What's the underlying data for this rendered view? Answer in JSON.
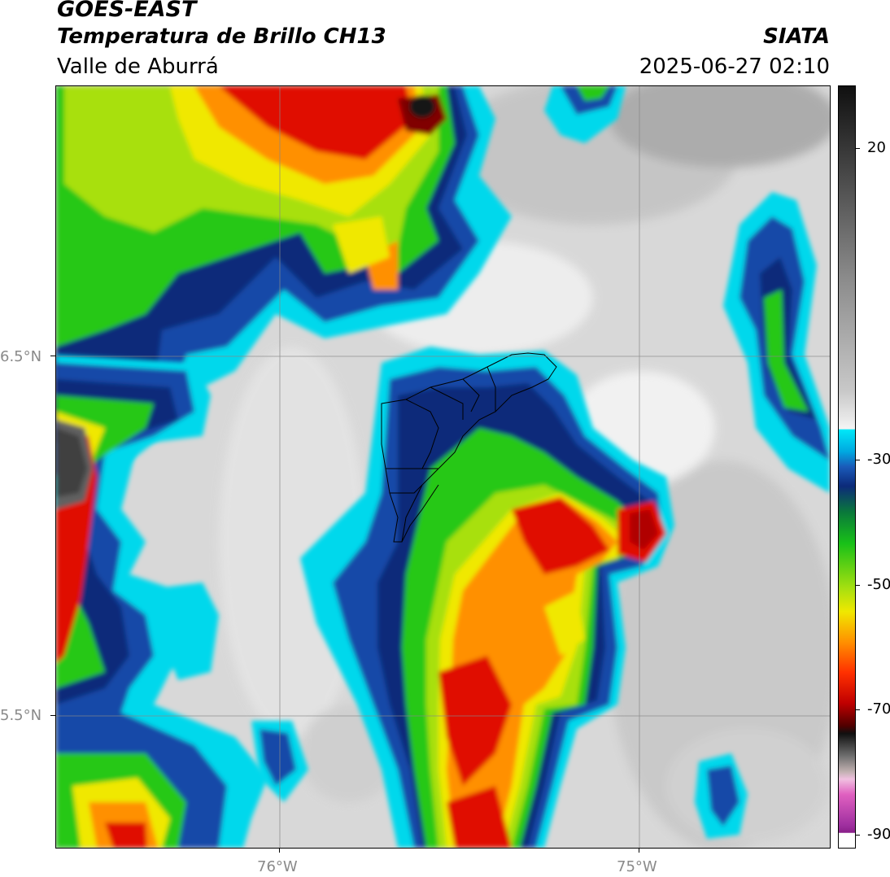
{
  "header": {
    "satellite": "GOES-EAST",
    "product": "Temperatura de Brillo CH13",
    "region": "Valle de Aburrá",
    "organization": "SIATA",
    "datetime": "2025-06-27 02:10"
  },
  "axes": {
    "lat_labels": [
      "6.5°N",
      "5.5°N"
    ],
    "lon_labels": [
      "76°W",
      "75°W"
    ]
  },
  "colorbar": {
    "ticks": [
      "20",
      "-30",
      "-50",
      "-70",
      "-90"
    ],
    "tick_values": [
      20,
      -30,
      -50,
      -70,
      -90
    ],
    "range": [
      -92,
      30
    ]
  },
  "colors": {
    "warm_gray": "#dedede",
    "cyan": "#00d8ec",
    "blue": "#1648a8",
    "dark_blue": "#0c2a7a",
    "green": "#28c818",
    "yellow": "#f0e800",
    "orange": "#ff9000",
    "red": "#e01000",
    "dark_red": "#800000",
    "black": "#141414",
    "magenta": "#b030b0"
  }
}
